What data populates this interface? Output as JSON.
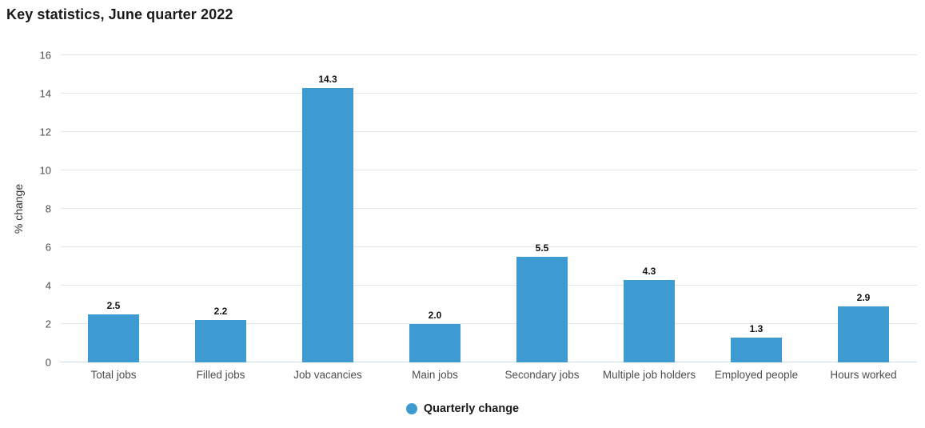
{
  "title": "Key statistics, June quarter 2022",
  "legend": {
    "label": "Quarterly change"
  },
  "colors": {
    "bar": "#3d9bd1",
    "gridline": "#e6e6e6",
    "baseline": "#c9dbe9",
    "title_text": "#1a1a1a",
    "tick_text": "#4d4d4d",
    "category_text": "#4d4d4d",
    "value_label_text": "#111111"
  },
  "chart_data": {
    "type": "bar",
    "title": "Key statistics, June quarter 2022",
    "categories": [
      "Total jobs",
      "Filled jobs",
      "Job vacancies",
      "Main jobs",
      "Secondary jobs",
      "Multiple job holders",
      "Employed people",
      "Hours worked"
    ],
    "series": [
      {
        "name": "Quarterly change",
        "values": [
          2.5,
          2.2,
          14.3,
          2.0,
          5.5,
          4.3,
          1.3,
          2.9
        ]
      }
    ],
    "value_labels": [
      "2.5",
      "2.2",
      "14.3",
      "2.0",
      "5.5",
      "4.3",
      "1.3",
      "2.9"
    ],
    "xlabel": "",
    "ylabel": "% change",
    "ylim": [
      0,
      16
    ],
    "yticks": [
      0,
      2,
      4,
      6,
      8,
      10,
      12,
      14,
      16
    ],
    "grid": true,
    "legend_position": "bottom-center"
  }
}
